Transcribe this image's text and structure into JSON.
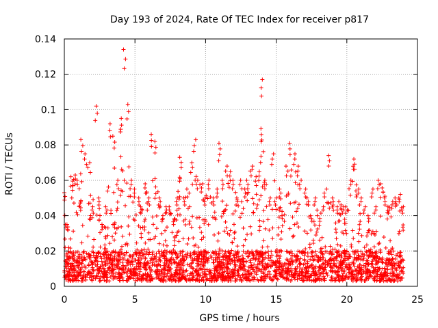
{
  "chart_data": {
    "type": "scatter",
    "title": "Day 193 of 2024, Rate Of TEC Index for receiver p817",
    "xlabel": "GPS time / hours",
    "ylabel": "ROTI / TECUs",
    "xlim": [
      0,
      25
    ],
    "ylim": [
      0,
      0.14
    ],
    "grid": true,
    "marker": "+",
    "x_ticks": [
      0,
      5,
      10,
      15,
      20,
      25
    ],
    "x_tick_labels": [
      "0",
      "5",
      "10",
      "15",
      "20",
      "25"
    ],
    "y_ticks": [
      0,
      0.02,
      0.04,
      0.06,
      0.08,
      0.1,
      0.12,
      0.14
    ],
    "y_tick_labels": [
      "0",
      "0.02",
      "0.04",
      "0.06",
      "0.08",
      "0.1",
      "0.12",
      "0.14"
    ],
    "series": [
      {
        "name": "ROTI",
        "color": "#ff0000",
        "x_range_hours": [
          0,
          24
        ],
        "envelope_hours": [
          0,
          0.25,
          0.5,
          0.75,
          1,
          1.25,
          1.5,
          1.75,
          2,
          2.25,
          2.5,
          2.75,
          3,
          3.25,
          3.5,
          3.75,
          4,
          4.25,
          4.5,
          4.75,
          5,
          5.25,
          5.5,
          5.75,
          6,
          6.25,
          6.5,
          6.75,
          7,
          7.25,
          7.5,
          7.75,
          8,
          8.25,
          8.5,
          8.75,
          9,
          9.25,
          9.5,
          9.75,
          10,
          10.25,
          10.5,
          10.75,
          11,
          11.25,
          11.5,
          11.75,
          12,
          12.25,
          12.5,
          12.75,
          13,
          13.25,
          13.5,
          13.75,
          14,
          14.25,
          14.5,
          14.75,
          15,
          15.25,
          15.5,
          15.75,
          16,
          16.25,
          16.5,
          16.75,
          17,
          17.25,
          17.5,
          17.75,
          18,
          18.25,
          18.5,
          18.75,
          19,
          19.25,
          19.5,
          19.75,
          20,
          20.25,
          20.5,
          20.75,
          21,
          21.25,
          21.5,
          21.75,
          22,
          22.25,
          22.5,
          22.75,
          23,
          23.25,
          23.5,
          23.75,
          24
        ],
        "envelope_roti_max": [
          0.053,
          0.035,
          0.062,
          0.063,
          0.06,
          0.083,
          0.075,
          0.07,
          0.045,
          0.102,
          0.05,
          0.035,
          0.045,
          0.092,
          0.085,
          0.06,
          0.095,
          0.134,
          0.103,
          0.06,
          0.055,
          0.05,
          0.045,
          0.058,
          0.05,
          0.086,
          0.082,
          0.05,
          0.04,
          0.045,
          0.045,
          0.038,
          0.05,
          0.073,
          0.05,
          0.055,
          0.07,
          0.083,
          0.06,
          0.058,
          0.05,
          0.06,
          0.05,
          0.055,
          0.081,
          0.06,
          0.068,
          0.065,
          0.06,
          0.05,
          0.06,
          0.055,
          0.06,
          0.068,
          0.062,
          0.065,
          0.117,
          0.06,
          0.05,
          0.075,
          0.05,
          0.055,
          0.04,
          0.068,
          0.081,
          0.075,
          0.068,
          0.06,
          0.055,
          0.05,
          0.04,
          0.05,
          0.04,
          0.045,
          0.055,
          0.074,
          0.05,
          0.045,
          0.048,
          0.045,
          0.045,
          0.06,
          0.072,
          0.055,
          0.05,
          0.045,
          0.04,
          0.055,
          0.045,
          0.06,
          0.058,
          0.05,
          0.045,
          0.048,
          0.05,
          0.052,
          0.045
        ],
        "baseline_roti_range": [
          0.003,
          0.02
        ]
      }
    ]
  }
}
